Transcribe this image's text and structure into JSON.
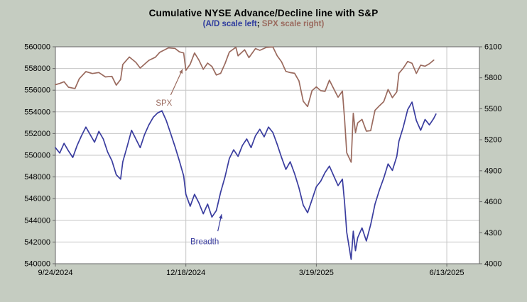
{
  "page": {
    "background": "#c5ccc1"
  },
  "header": {
    "title": "Cumulative NYSE Advance/Decline line with S&P",
    "subtitle_parts": [
      {
        "text": "(",
        "color": "#2f3c9e"
      },
      {
        "text": "A/D scale left",
        "color": "#2f3c9e"
      },
      {
        "text": "; ",
        "color": "#000000"
      },
      {
        "text": "SPX scale right",
        "color": "#9a6a5e"
      },
      {
        "text": ")",
        "color": "#9a6a5e"
      }
    ]
  },
  "chart_data": {
    "type": "line",
    "title": "Cumulative NYSE Advance/Decline line with S&P",
    "subtitle": "(A/D scale left; SPX scale right)",
    "grid": true,
    "legend": "none (arrow annotations identify series)",
    "plot_background": "#ffffff",
    "gridline_color": "#c6c6c6",
    "border_color": "#666666",
    "axis_label_color": "#000000",
    "x_domain": [
      0,
      195
    ],
    "x_unit": "trading days since 9/24/2024",
    "x_ticks": [
      {
        "x": 0,
        "label": "9/24/2024"
      },
      {
        "x": 60,
        "label": "12/18/2024"
      },
      {
        "x": 120,
        "label": "3/19/2025"
      },
      {
        "x": 180,
        "label": "6/13/2025"
      }
    ],
    "left_axis": {
      "title": "A/D scale left",
      "min": 540000,
      "max": 560000,
      "step": 2000
    },
    "right_axis": {
      "title": "SPX scale right",
      "min": 4000,
      "max": 6100,
      "step": 300
    },
    "series": [
      {
        "name": "Breadth",
        "axis": "left",
        "color": "#3a3d9f",
        "x": [
          0,
          2,
          4,
          6,
          8,
          10,
          12,
          14,
          16,
          18,
          20,
          22,
          24,
          26,
          28,
          30,
          31,
          33,
          35,
          37,
          39,
          41,
          43,
          45,
          47,
          49,
          51,
          53,
          55,
          57,
          59,
          60,
          62,
          64,
          66,
          68,
          70,
          72,
          74,
          76,
          78,
          80,
          82,
          84,
          86,
          88,
          90,
          92,
          94,
          96,
          98,
          100,
          102,
          104,
          106,
          108,
          110,
          112,
          114,
          116,
          118,
          120,
          122,
          124,
          126,
          128,
          130,
          132,
          133,
          134,
          136,
          137,
          138,
          139,
          141,
          143,
          145,
          147,
          149,
          151,
          153,
          155,
          157,
          158,
          160,
          162,
          164,
          166,
          168,
          170,
          172,
          174,
          175
        ],
        "values": [
          550700,
          550200,
          551100,
          550400,
          549800,
          550900,
          551800,
          552600,
          551900,
          551200,
          552200,
          551500,
          550300,
          549500,
          548200,
          547800,
          549400,
          550800,
          552300,
          551500,
          550700,
          551900,
          552800,
          553500,
          553900,
          554100,
          553200,
          552000,
          550800,
          549500,
          548100,
          546400,
          545300,
          546400,
          545600,
          544600,
          545500,
          544300,
          544900,
          546600,
          548000,
          549700,
          550500,
          549900,
          550900,
          551500,
          550700,
          551800,
          552400,
          551700,
          552600,
          552100,
          551000,
          549800,
          548700,
          549400,
          548300,
          547000,
          545400,
          544700,
          545900,
          547100,
          547600,
          548400,
          549000,
          548100,
          547200,
          547800,
          545600,
          542900,
          540400,
          543000,
          541200,
          542400,
          543300,
          542100,
          543600,
          545500,
          546800,
          547900,
          549200,
          548600,
          549900,
          551300,
          552600,
          554200,
          554900,
          553200,
          552300,
          553300,
          552800,
          553400,
          553800
        ]
      },
      {
        "name": "SPX",
        "axis": "right",
        "color": "#9a6a5e",
        "x": [
          0,
          2,
          4,
          6,
          9,
          11,
          14,
          17,
          20,
          23,
          26,
          28,
          30,
          31,
          34,
          37,
          39,
          43,
          46,
          48,
          52,
          55,
          57,
          59,
          60,
          62,
          64,
          66,
          68,
          70,
          72,
          74,
          76,
          78,
          80,
          83,
          84,
          87,
          89,
          92,
          94,
          97,
          99,
          100,
          102,
          104,
          106,
          108,
          110,
          112,
          114,
          116,
          118,
          120,
          122,
          124,
          126,
          128,
          130,
          132,
          133,
          134,
          136,
          137,
          138,
          139,
          141,
          143,
          145,
          147,
          149,
          151,
          153,
          155,
          157,
          158,
          160,
          162,
          164,
          166,
          168,
          170,
          172,
          174
        ],
        "values": [
          5733,
          5745,
          5762,
          5709,
          5696,
          5792,
          5860,
          5841,
          5851,
          5808,
          5814,
          5729,
          5783,
          5929,
          6001,
          5949,
          5894,
          5969,
          5999,
          6047,
          6090,
          6084,
          6051,
          6040,
          5872,
          5931,
          6040,
          5971,
          5882,
          5942,
          5909,
          5827,
          5843,
          5937,
          6049,
          6095,
          6012,
          6071,
          5995,
          6083,
          6066,
          6094,
          6097,
          6098,
          6013,
          5955,
          5862,
          5850,
          5843,
          5770,
          5572,
          5521,
          5675,
          5712,
          5675,
          5668,
          5777,
          5693,
          5612,
          5671,
          5396,
          5074,
          4983,
          5457,
          5268,
          5363,
          5397,
          5283,
          5288,
          5485,
          5529,
          5569,
          5687,
          5607,
          5664,
          5844,
          5893,
          5958,
          5940,
          5842,
          5922,
          5912,
          5936,
          5971
        ]
      }
    ],
    "annotations": [
      {
        "id": "spx-label",
        "text": "SPX",
        "color": "#9a6a5e",
        "fx": 0.256,
        "fy": 0.258,
        "arrow": {
          "x1f": 0.272,
          "y1f": 0.222,
          "x2f": 0.3,
          "y2f": 0.103
        }
      },
      {
        "id": "breadth-label",
        "text": "Breadth",
        "color": "#3a3d9f",
        "fx": 0.352,
        "fy": 0.897,
        "arrow": {
          "x1f": 0.383,
          "y1f": 0.85,
          "x2f": 0.392,
          "y2f": 0.772
        }
      }
    ]
  }
}
